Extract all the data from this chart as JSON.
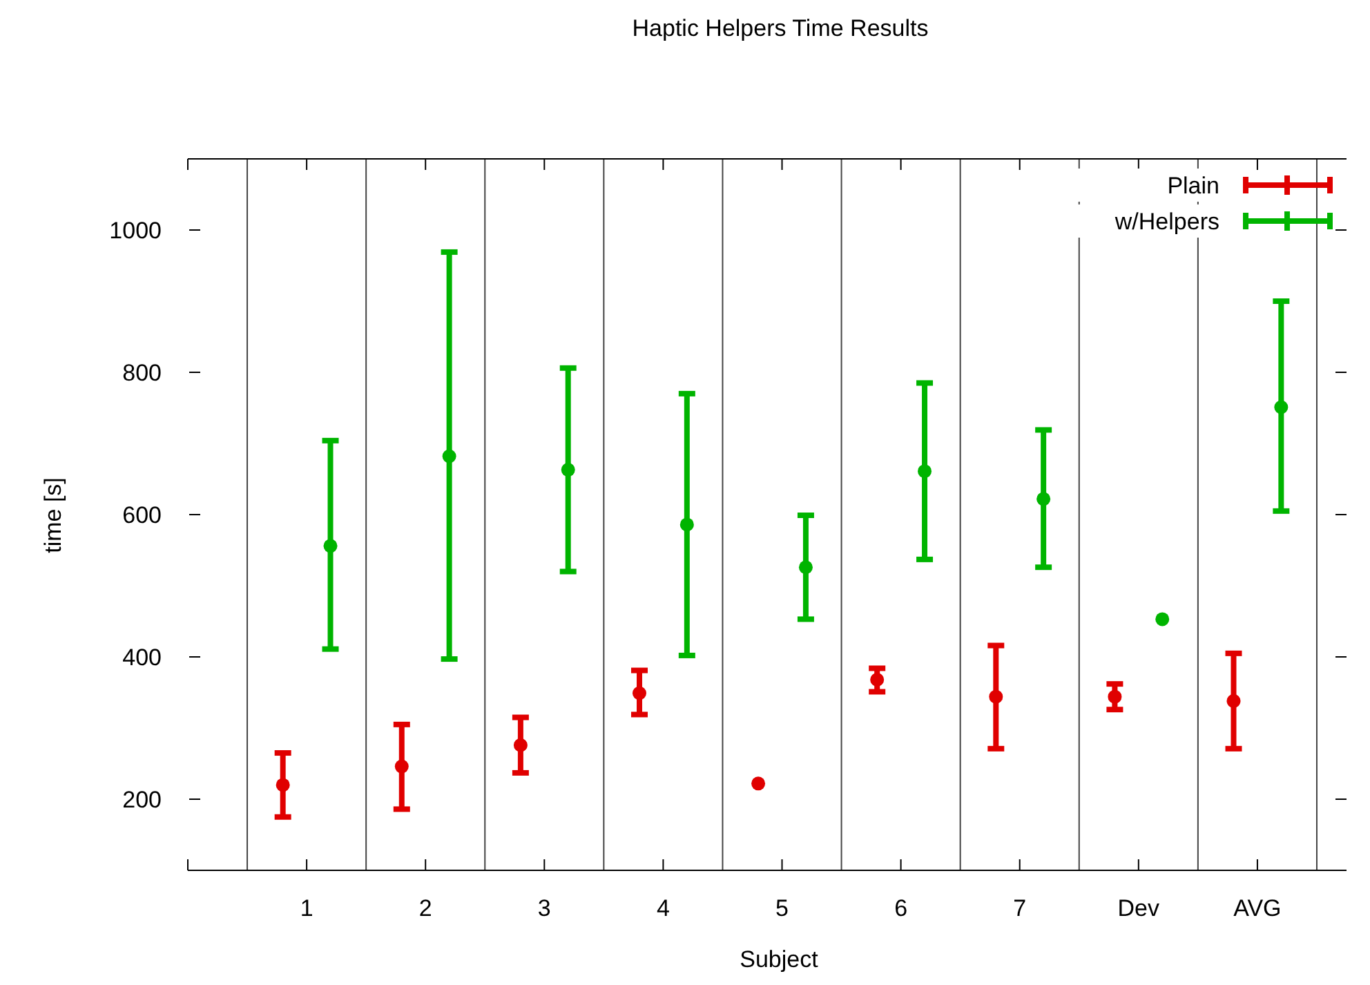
{
  "chart_data": {
    "type": "scatter",
    "title": "Haptic Helpers Time Results",
    "xlabel": "Subject",
    "ylabel": "time [s]",
    "xlim": [
      0,
      9.75
    ],
    "xticks": [
      {
        "value": 0,
        "label": null
      },
      {
        "value": 1,
        "label": "1"
      },
      {
        "value": 2,
        "label": "2"
      },
      {
        "value": 3,
        "label": "3"
      },
      {
        "value": 4,
        "label": "4"
      },
      {
        "value": 5,
        "label": "5"
      },
      {
        "value": 6,
        "label": "6"
      },
      {
        "value": 7,
        "label": "7"
      },
      {
        "value": 8,
        "label": "Dev"
      },
      {
        "value": 9,
        "label": "AVG"
      }
    ],
    "series": [
      {
        "name": "Plain",
        "color": "#e00000",
        "x": [
          0.8,
          1.8,
          2.8,
          3.8,
          4.8,
          5.8,
          6.8,
          7.8,
          8.8
        ],
        "values": [
          220,
          246,
          276,
          349,
          222,
          368,
          344,
          344,
          338
        ],
        "errors": [
          [
            175,
            265
          ],
          [
            186,
            305
          ],
          [
            237,
            315
          ],
          [
            319,
            381
          ],
          null,
          [
            351,
            384
          ],
          [
            271,
            416
          ],
          [
            326,
            362
          ],
          [
            271,
            405
          ]
        ]
      },
      {
        "name": "w/Helpers",
        "color": "#00b400",
        "x": [
          1.2,
          2.2,
          3.2,
          4.2,
          5.2,
          6.2,
          7.2,
          8.2,
          9.2
        ],
        "values": [
          556,
          682,
          663,
          586,
          526,
          661,
          622,
          453,
          751
        ],
        "errors": [
          [
            411,
            704
          ],
          [
            397,
            969
          ],
          [
            520,
            806
          ],
          [
            402,
            770
          ],
          [
            453,
            599
          ],
          [
            537,
            785
          ],
          [
            526,
            719
          ],
          null,
          [
            605,
            900
          ]
        ]
      }
    ],
    "ylim": [
      100,
      1100
    ],
    "yticks": [
      200,
      400,
      600,
      800,
      1000
    ],
    "ref_lines": [
      {
        "axis": "x",
        "value": 0.5
      },
      {
        "axis": "x",
        "value": 1.5
      },
      {
        "axis": "x",
        "value": 2.5
      },
      {
        "axis": "x",
        "value": 3.5
      },
      {
        "axis": "x",
        "value": 4.5
      },
      {
        "axis": "x",
        "value": 5.5
      },
      {
        "axis": "x",
        "value": 6.5
      },
      {
        "axis": "x",
        "value": 7.5
      },
      {
        "axis": "x",
        "value": 8.5
      },
      {
        "axis": "x",
        "value": 9.5
      }
    ],
    "legend": "top right",
    "marker": "circle"
  }
}
